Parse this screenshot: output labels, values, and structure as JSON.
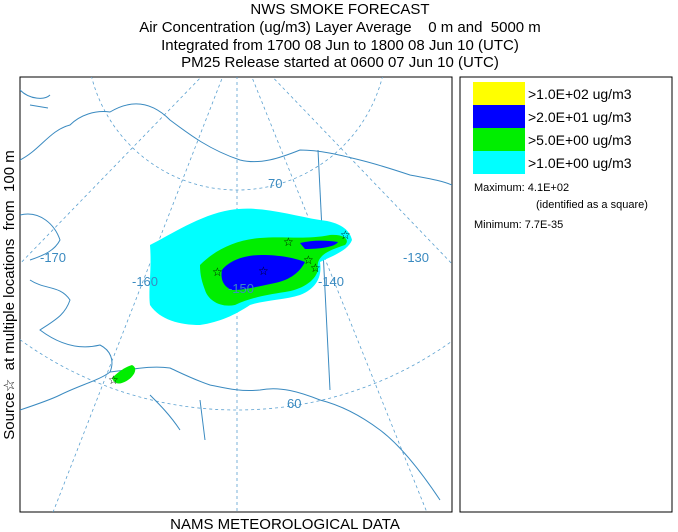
{
  "header": {
    "lines": [
      "NWS SMOKE FORECAST",
      "Air Concentration (ug/m3) Layer Average    0 m and  5000 m",
      "Integrated from 1700 08 Jun to 1800 08 Jun 10 (UTC)",
      "PM25 Release started at 0600 07 Jun 10 (UTC)"
    ]
  },
  "side_label": "Source☆  at multiple locations  from  100 m",
  "footer": "NAMS METEOROLOGICAL DATA",
  "legend": {
    "entries": [
      {
        "label": ">1.0E+02 ug/m3",
        "color": "#ffff00"
      },
      {
        "label": ">2.0E+01 ug/m3",
        "color": "#0000ff"
      },
      {
        "label": ">5.0E+00 ug/m3",
        "color": "#00ee00"
      },
      {
        "label": ">1.0E+00 ug/m3",
        "color": "#00ffff"
      }
    ],
    "maximum": "Maximum: 4.1E+02",
    "maximum_note": "(identified as a square)",
    "minimum": "Minimum: 7.7E-35"
  },
  "map": {
    "labels": [
      "-170",
      "-160",
      "-150",
      "-140",
      "-130",
      "70",
      "60"
    ]
  }
}
